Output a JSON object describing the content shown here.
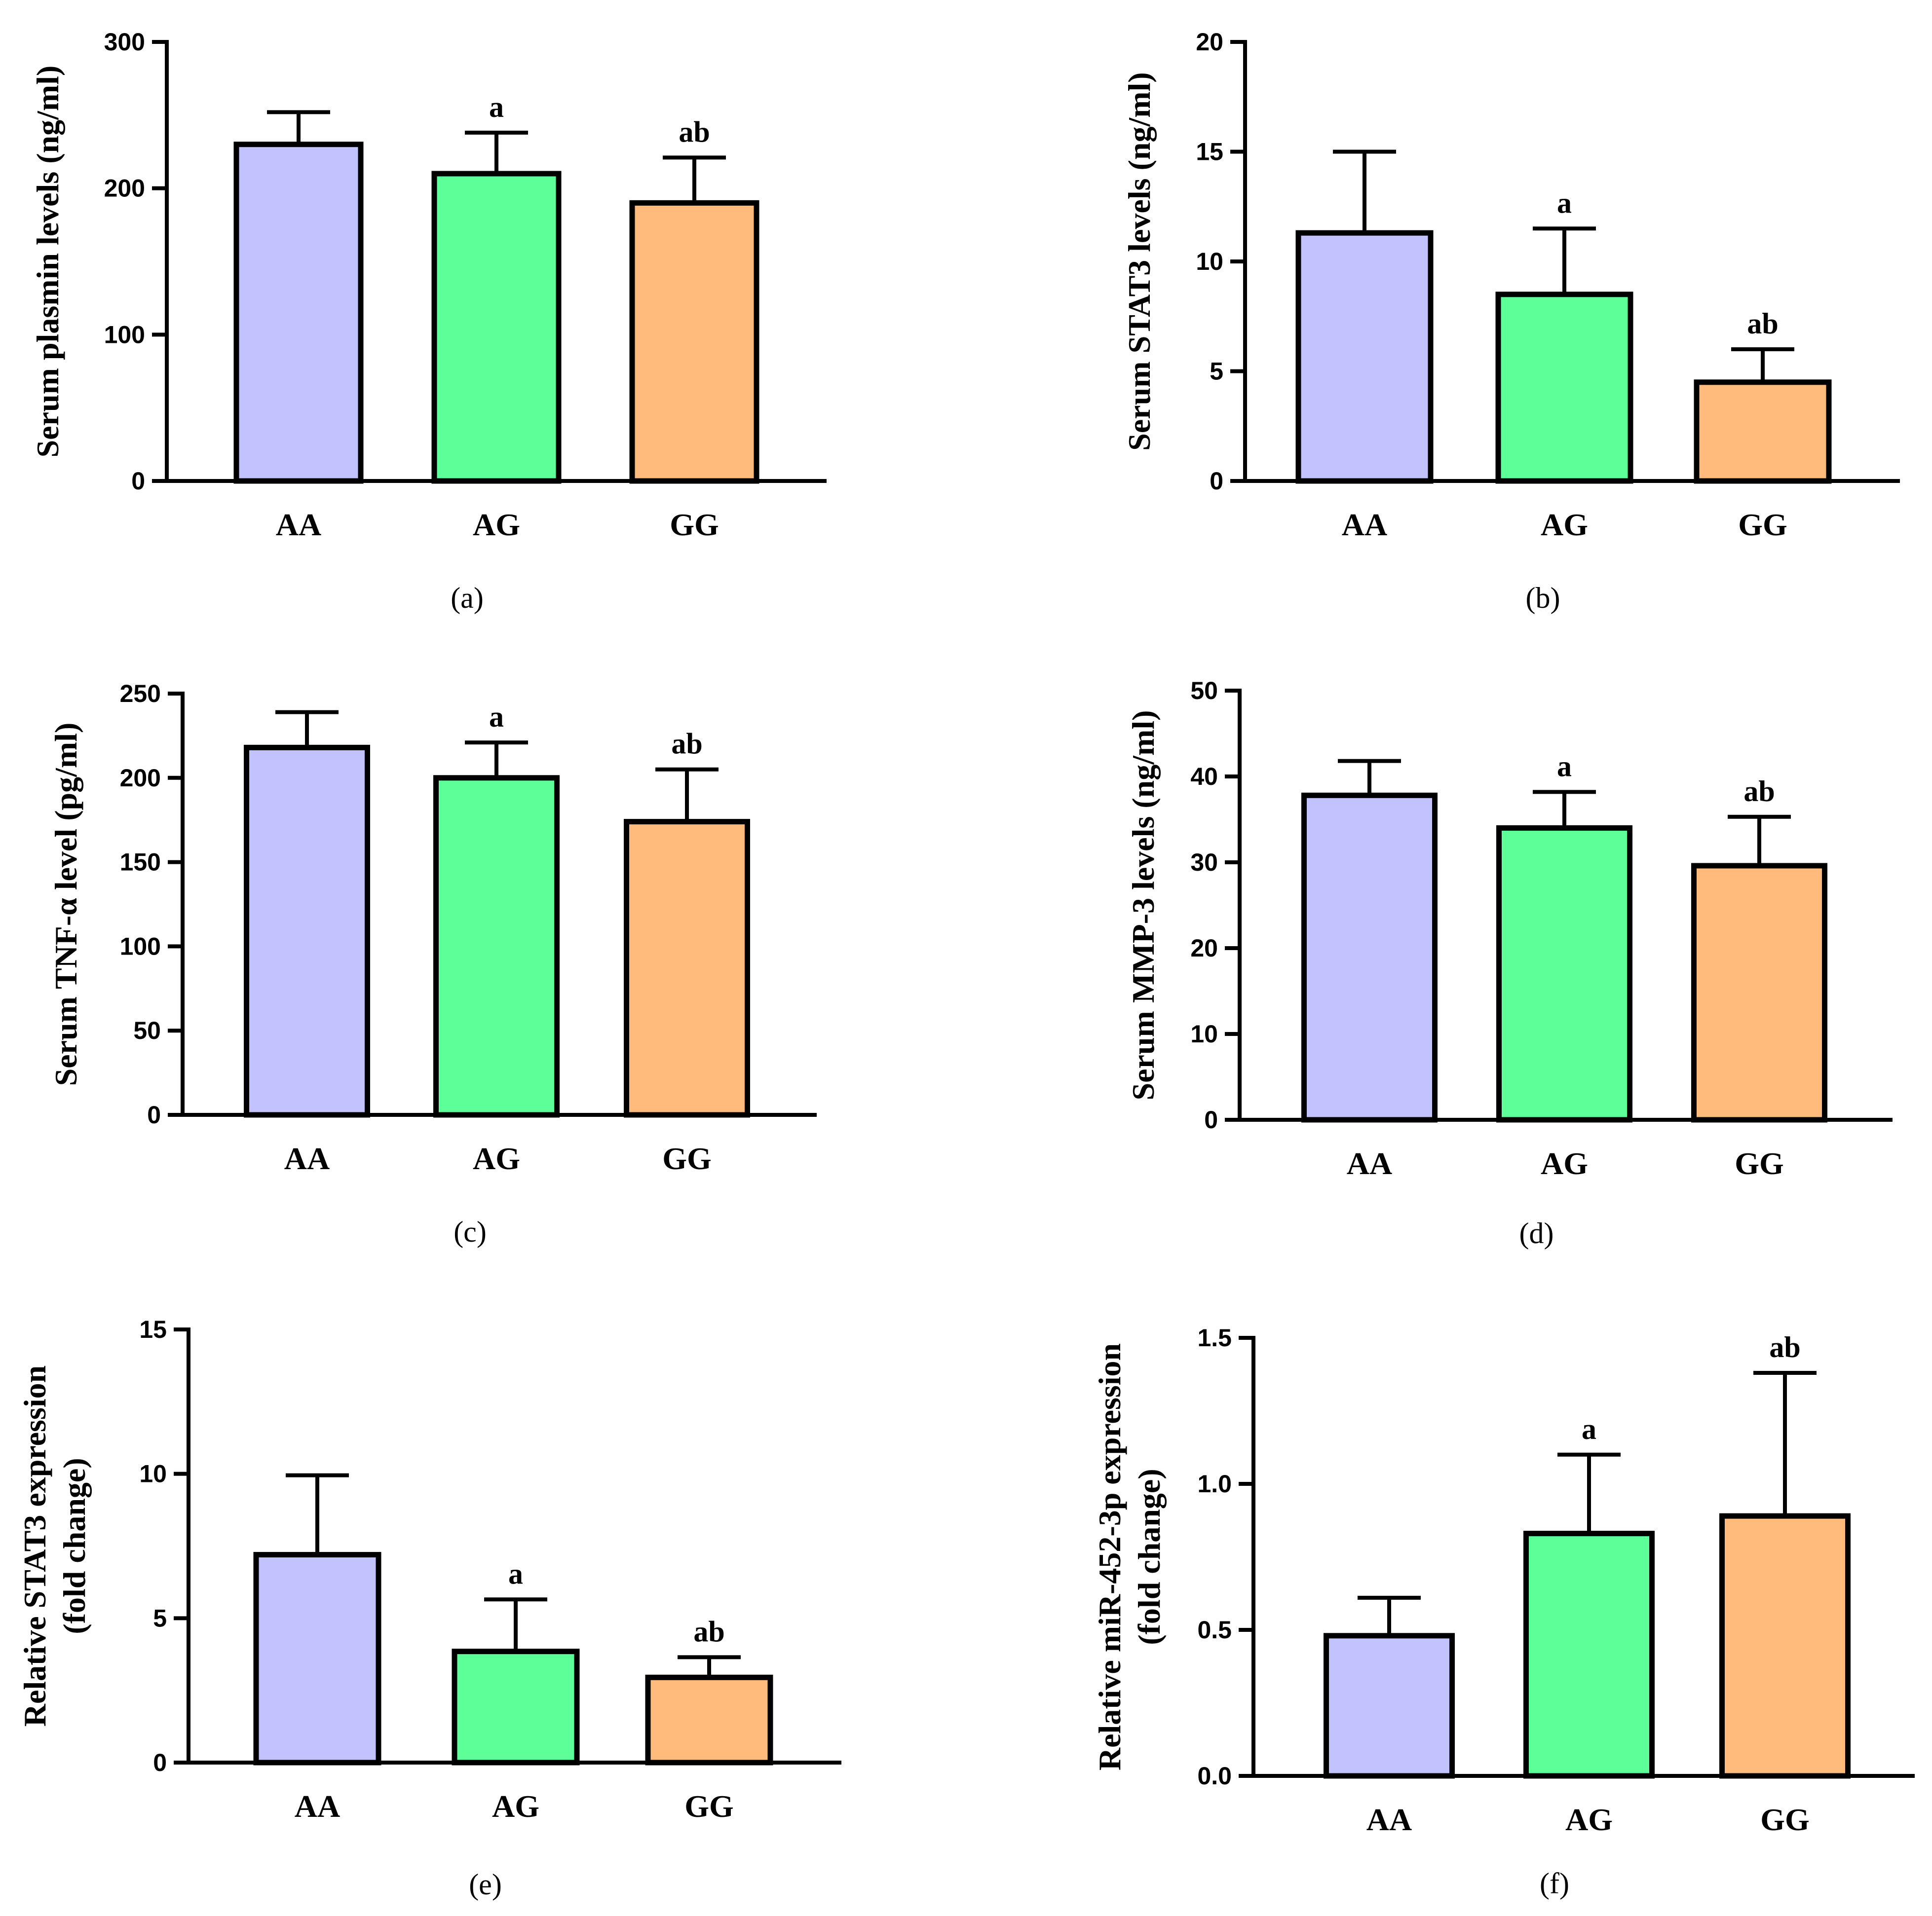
{
  "chart_data": [
    {
      "panel": "(a)",
      "type": "bar",
      "categories": [
        "AA",
        "AG",
        "GG"
      ],
      "values": [
        230,
        210,
        190
      ],
      "errors": [
        22,
        28,
        31
      ],
      "annotations": [
        "",
        "a",
        "ab"
      ],
      "ylabel": [
        "Serum plasmin levels (ng/ml)"
      ],
      "ylim": [
        0,
        300
      ],
      "yticks": [
        0,
        100,
        200,
        300
      ],
      "ytick_labels": [
        "0",
        "100",
        "200",
        "300"
      ],
      "colors": [
        "#c2c2ff",
        "#5cff98",
        "#ffbb7c"
      ]
    },
    {
      "panel": "(b)",
      "type": "bar",
      "categories": [
        "AA",
        "AG",
        "GG"
      ],
      "values": [
        11.3,
        8.5,
        4.5
      ],
      "errors": [
        3.7,
        3.0,
        1.5
      ],
      "annotations": [
        "",
        "a",
        "ab"
      ],
      "ylabel": [
        "Serum STAT3 levels (ng/ml)"
      ],
      "ylim": [
        0,
        20
      ],
      "yticks": [
        0,
        5,
        10,
        15,
        20
      ],
      "ytick_labels": [
        "0",
        "5",
        "10",
        "15",
        "20"
      ],
      "colors": [
        "#c2c2ff",
        "#5cff98",
        "#ffbb7c"
      ]
    },
    {
      "panel": "(c)",
      "type": "bar",
      "categories": [
        "AA",
        "AG",
        "GG"
      ],
      "values": [
        218,
        200,
        174
      ],
      "errors": [
        21,
        21,
        31
      ],
      "annotations": [
        "",
        "a",
        "ab"
      ],
      "ylabel": [
        "Serum TNF-α level (pg/ml)"
      ],
      "ylim": [
        0,
        250
      ],
      "yticks": [
        0,
        50,
        100,
        150,
        200,
        250
      ],
      "ytick_labels": [
        "0",
        "50",
        "100",
        "150",
        "200",
        "250"
      ],
      "colors": [
        "#c2c2ff",
        "#5cff98",
        "#ffbb7c"
      ]
    },
    {
      "panel": "(d)",
      "type": "bar",
      "categories": [
        "AA",
        "AG",
        "GG"
      ],
      "values": [
        37.8,
        34,
        29.6
      ],
      "errors": [
        4,
        4.2,
        5.7
      ],
      "annotations": [
        "",
        "a",
        "ab"
      ],
      "ylabel": [
        "Serum MMP-3 levels (ng/ml)"
      ],
      "ylim": [
        0,
        50
      ],
      "yticks": [
        0,
        10,
        20,
        30,
        40,
        50
      ],
      "ytick_labels": [
        "0",
        "10",
        "20",
        "30",
        "40",
        "50"
      ],
      "colors": [
        "#c2c2ff",
        "#5cff98",
        "#ffbb7c"
      ]
    },
    {
      "panel": "(e)",
      "type": "bar",
      "categories": [
        "AA",
        "AG",
        "GG"
      ],
      "values": [
        7.2,
        3.85,
        2.95
      ],
      "errors": [
        2.75,
        1.8,
        0.7
      ],
      "annotations": [
        "",
        "a",
        "ab"
      ],
      "ylabel": [
        "Relative STAT3 expression",
        "(fold change)"
      ],
      "ylim": [
        0,
        15
      ],
      "yticks": [
        0,
        5,
        10,
        15
      ],
      "ytick_labels": [
        "0",
        "5",
        "10",
        "15"
      ],
      "colors": [
        "#c2c2ff",
        "#5cff98",
        "#ffbb7c"
      ]
    },
    {
      "panel": "(f)",
      "type": "bar",
      "categories": [
        "AA",
        "AG",
        "GG"
      ],
      "values": [
        0.48,
        0.83,
        0.89
      ],
      "errors": [
        0.13,
        0.27,
        0.49
      ],
      "annotations": [
        "",
        "a",
        "ab"
      ],
      "ylabel": [
        "Relative miR-452-3p expression",
        "(fold change)"
      ],
      "ylim": [
        0,
        1.5
      ],
      "yticks": [
        0,
        0.5,
        1.0,
        1.5
      ],
      "ytick_labels": [
        "0.0",
        "0.5",
        "1.0",
        "1.5"
      ],
      "colors": [
        "#c2c2ff",
        "#5cff98",
        "#ffbb7c"
      ]
    }
  ]
}
